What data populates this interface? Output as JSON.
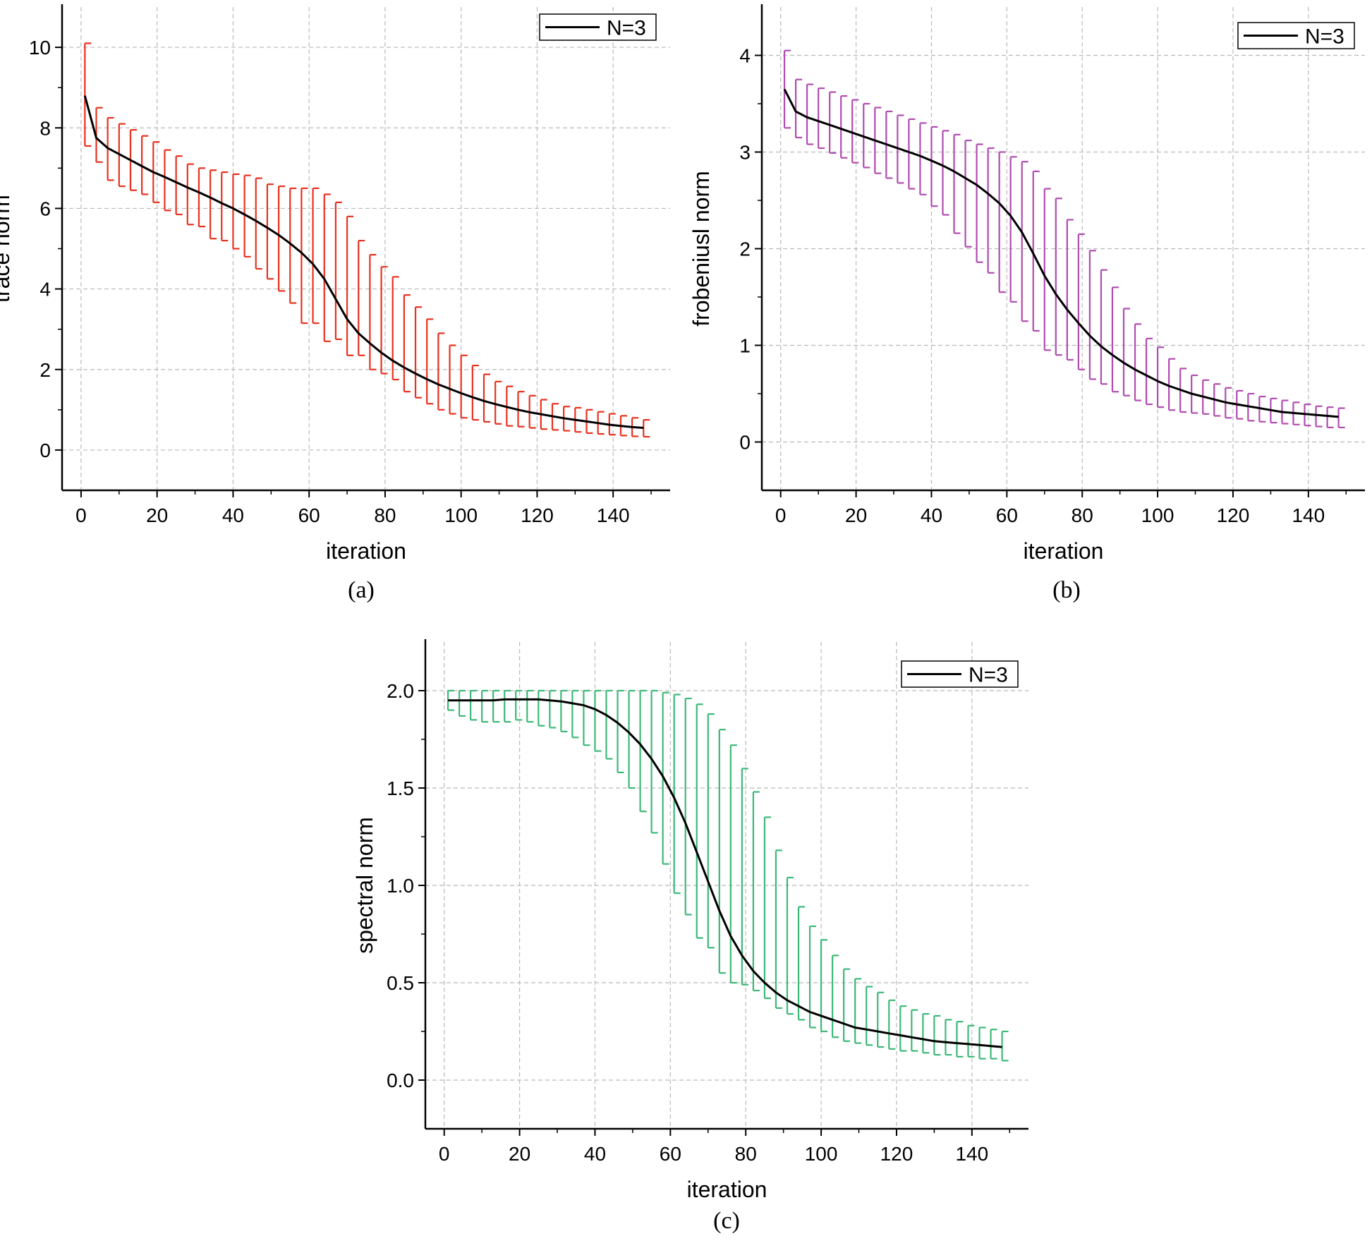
{
  "figure": {
    "captions": [
      "(a)",
      "(b)",
      "(c)"
    ]
  },
  "chart_data": [
    {
      "type": "line",
      "panel": "a",
      "title": "",
      "xlabel": "iteration",
      "ylabel": "trace norm",
      "xlim": [
        -5,
        155
      ],
      "ylim": [
        -1,
        11
      ],
      "x_ticks": [
        0,
        20,
        40,
        60,
        80,
        100,
        120,
        140
      ],
      "y_ticks": [
        0,
        2,
        4,
        6,
        8,
        10
      ],
      "grid": true,
      "legend": {
        "position": "top-right",
        "label": "N=3"
      },
      "line_color": "#000000",
      "errorbar_color": "#e8311f",
      "series": [
        {
          "name": "N=3",
          "x": [
            1,
            4,
            7,
            10,
            13,
            16,
            19,
            22,
            25,
            28,
            31,
            34,
            37,
            40,
            43,
            46,
            49,
            52,
            55,
            58,
            61,
            64,
            67,
            70,
            73,
            76,
            79,
            82,
            85,
            88,
            91,
            94,
            97,
            100,
            103,
            106,
            109,
            112,
            115,
            118,
            121,
            124,
            127,
            130,
            133,
            136,
            139,
            142,
            145,
            148
          ],
          "y": [
            8.8,
            7.75,
            7.5,
            7.35,
            7.2,
            7.05,
            6.9,
            6.78,
            6.65,
            6.52,
            6.4,
            6.27,
            6.13,
            6.0,
            5.85,
            5.69,
            5.52,
            5.34,
            5.13,
            4.9,
            4.62,
            4.25,
            3.75,
            3.25,
            2.9,
            2.65,
            2.42,
            2.22,
            2.05,
            1.9,
            1.76,
            1.63,
            1.52,
            1.41,
            1.31,
            1.22,
            1.14,
            1.07,
            1.0,
            0.94,
            0.89,
            0.84,
            0.79,
            0.75,
            0.71,
            0.67,
            0.63,
            0.6,
            0.57,
            0.55
          ],
          "upper": [
            10.1,
            8.5,
            8.25,
            8.1,
            7.95,
            7.8,
            7.65,
            7.45,
            7.3,
            7.1,
            7.0,
            6.95,
            6.9,
            6.85,
            6.82,
            6.75,
            6.6,
            6.55,
            6.5,
            6.5,
            6.5,
            6.35,
            6.15,
            5.8,
            5.2,
            4.85,
            4.55,
            4.3,
            3.85,
            3.55,
            3.25,
            2.9,
            2.6,
            2.35,
            2.1,
            1.88,
            1.7,
            1.58,
            1.45,
            1.35,
            1.25,
            1.15,
            1.08,
            1.05,
            1.0,
            0.95,
            0.9,
            0.85,
            0.8,
            0.75
          ],
          "lower": [
            7.55,
            7.15,
            6.7,
            6.55,
            6.45,
            6.35,
            6.15,
            5.95,
            5.85,
            5.6,
            5.55,
            5.25,
            5.2,
            5.0,
            4.8,
            4.5,
            4.25,
            3.95,
            3.65,
            3.15,
            3.15,
            2.7,
            2.75,
            2.35,
            2.35,
            2.0,
            1.9,
            1.75,
            1.45,
            1.3,
            1.15,
            1.0,
            0.9,
            0.8,
            0.75,
            0.7,
            0.65,
            0.6,
            0.58,
            0.55,
            0.52,
            0.5,
            0.48,
            0.45,
            0.42,
            0.4,
            0.38,
            0.36,
            0.34,
            0.33
          ]
        }
      ]
    },
    {
      "type": "line",
      "panel": "b",
      "title": "",
      "xlabel": "iteration",
      "ylabel": "frobeniusl norm",
      "xlim": [
        -5,
        155
      ],
      "ylim": [
        -0.5,
        4.5
      ],
      "x_ticks": [
        0,
        20,
        40,
        60,
        80,
        100,
        120,
        140
      ],
      "y_ticks": [
        0,
        1,
        2,
        3,
        4
      ],
      "grid": true,
      "legend": {
        "position": "top-right",
        "label": "N=3"
      },
      "line_color": "#000000",
      "errorbar_color": "#b04cb0",
      "series": [
        {
          "name": "N=3",
          "x": [
            1,
            4,
            7,
            10,
            13,
            16,
            19,
            22,
            25,
            28,
            31,
            34,
            37,
            40,
            43,
            46,
            49,
            52,
            55,
            58,
            61,
            64,
            67,
            70,
            73,
            76,
            79,
            82,
            85,
            88,
            91,
            94,
            97,
            100,
            103,
            106,
            109,
            112,
            115,
            118,
            121,
            124,
            127,
            130,
            133,
            136,
            139,
            142,
            145,
            148
          ],
          "y": [
            3.65,
            3.42,
            3.36,
            3.32,
            3.28,
            3.24,
            3.2,
            3.16,
            3.12,
            3.08,
            3.04,
            3.0,
            2.96,
            2.91,
            2.86,
            2.8,
            2.73,
            2.66,
            2.57,
            2.47,
            2.34,
            2.17,
            1.95,
            1.72,
            1.53,
            1.37,
            1.23,
            1.1,
            0.99,
            0.9,
            0.82,
            0.75,
            0.69,
            0.63,
            0.58,
            0.54,
            0.5,
            0.47,
            0.44,
            0.41,
            0.39,
            0.37,
            0.35,
            0.33,
            0.31,
            0.3,
            0.29,
            0.28,
            0.27,
            0.26
          ],
          "upper": [
            4.05,
            3.75,
            3.7,
            3.66,
            3.62,
            3.58,
            3.54,
            3.5,
            3.46,
            3.42,
            3.38,
            3.34,
            3.3,
            3.26,
            3.22,
            3.18,
            3.12,
            3.08,
            3.04,
            3.0,
            2.95,
            2.9,
            2.8,
            2.62,
            2.52,
            2.3,
            2.15,
            1.98,
            1.78,
            1.6,
            1.38,
            1.22,
            1.07,
            0.98,
            0.86,
            0.76,
            0.69,
            0.64,
            0.6,
            0.56,
            0.53,
            0.5,
            0.47,
            0.45,
            0.43,
            0.41,
            0.39,
            0.37,
            0.36,
            0.35
          ],
          "lower": [
            3.25,
            3.15,
            3.08,
            3.04,
            2.99,
            2.94,
            2.89,
            2.84,
            2.78,
            2.73,
            2.68,
            2.62,
            2.56,
            2.44,
            2.35,
            2.16,
            2.02,
            1.86,
            1.75,
            1.55,
            1.45,
            1.25,
            1.15,
            0.95,
            0.9,
            0.85,
            0.75,
            0.65,
            0.6,
            0.52,
            0.48,
            0.43,
            0.39,
            0.36,
            0.33,
            0.31,
            0.3,
            0.29,
            0.27,
            0.25,
            0.24,
            0.22,
            0.21,
            0.2,
            0.19,
            0.18,
            0.17,
            0.16,
            0.15,
            0.15
          ]
        }
      ]
    },
    {
      "type": "line",
      "panel": "c",
      "title": "",
      "xlabel": "iteration",
      "ylabel": "spectral norm",
      "xlim": [
        -5,
        155
      ],
      "ylim": [
        -0.25,
        2.25
      ],
      "x_ticks": [
        0,
        20,
        40,
        60,
        80,
        100,
        120,
        140
      ],
      "y_ticks": [
        0.0,
        0.5,
        1.0,
        1.5,
        2.0
      ],
      "y_tick_labels": [
        "0.0",
        "0.5",
        "1.0",
        "1.5",
        "2.0"
      ],
      "grid": true,
      "legend": {
        "position": "top-right",
        "label": "N=3"
      },
      "line_color": "#000000",
      "errorbar_color": "#3cb878",
      "series": [
        {
          "name": "N=3",
          "x": [
            1,
            4,
            7,
            10,
            13,
            16,
            19,
            22,
            25,
            28,
            31,
            34,
            37,
            40,
            43,
            46,
            49,
            52,
            55,
            58,
            61,
            64,
            67,
            70,
            73,
            76,
            79,
            82,
            85,
            88,
            91,
            94,
            97,
            100,
            103,
            106,
            109,
            112,
            115,
            118,
            121,
            124,
            127,
            130,
            133,
            136,
            139,
            142,
            145,
            148
          ],
          "y": [
            1.95,
            1.95,
            1.95,
            1.95,
            1.95,
            1.955,
            1.955,
            1.955,
            1.955,
            1.95,
            1.945,
            1.935,
            1.925,
            1.905,
            1.875,
            1.835,
            1.785,
            1.725,
            1.65,
            1.56,
            1.45,
            1.32,
            1.17,
            1.02,
            0.87,
            0.74,
            0.64,
            0.56,
            0.5,
            0.45,
            0.41,
            0.38,
            0.35,
            0.33,
            0.31,
            0.29,
            0.27,
            0.26,
            0.25,
            0.24,
            0.23,
            0.22,
            0.21,
            0.2,
            0.195,
            0.19,
            0.185,
            0.18,
            0.175,
            0.17
          ],
          "upper": [
            2.0,
            2.0,
            2.0,
            2.0,
            2.0,
            2.0,
            2.0,
            2.0,
            2.0,
            2.0,
            2.0,
            2.0,
            2.0,
            2.0,
            2.0,
            2.0,
            2.0,
            2.0,
            2.0,
            1.99,
            1.98,
            1.96,
            1.93,
            1.88,
            1.8,
            1.72,
            1.6,
            1.48,
            1.35,
            1.18,
            1.04,
            0.89,
            0.79,
            0.72,
            0.64,
            0.57,
            0.52,
            0.48,
            0.45,
            0.41,
            0.38,
            0.36,
            0.34,
            0.33,
            0.31,
            0.3,
            0.28,
            0.27,
            0.26,
            0.25
          ],
          "lower": [
            1.9,
            1.87,
            1.85,
            1.84,
            1.84,
            1.84,
            1.85,
            1.84,
            1.82,
            1.81,
            1.79,
            1.76,
            1.72,
            1.69,
            1.65,
            1.58,
            1.5,
            1.38,
            1.27,
            1.11,
            0.96,
            0.85,
            0.73,
            0.68,
            0.55,
            0.5,
            0.49,
            0.46,
            0.42,
            0.37,
            0.34,
            0.31,
            0.27,
            0.25,
            0.22,
            0.2,
            0.19,
            0.18,
            0.17,
            0.16,
            0.15,
            0.15,
            0.14,
            0.13,
            0.13,
            0.12,
            0.12,
            0.11,
            0.11,
            0.1
          ]
        }
      ]
    }
  ]
}
